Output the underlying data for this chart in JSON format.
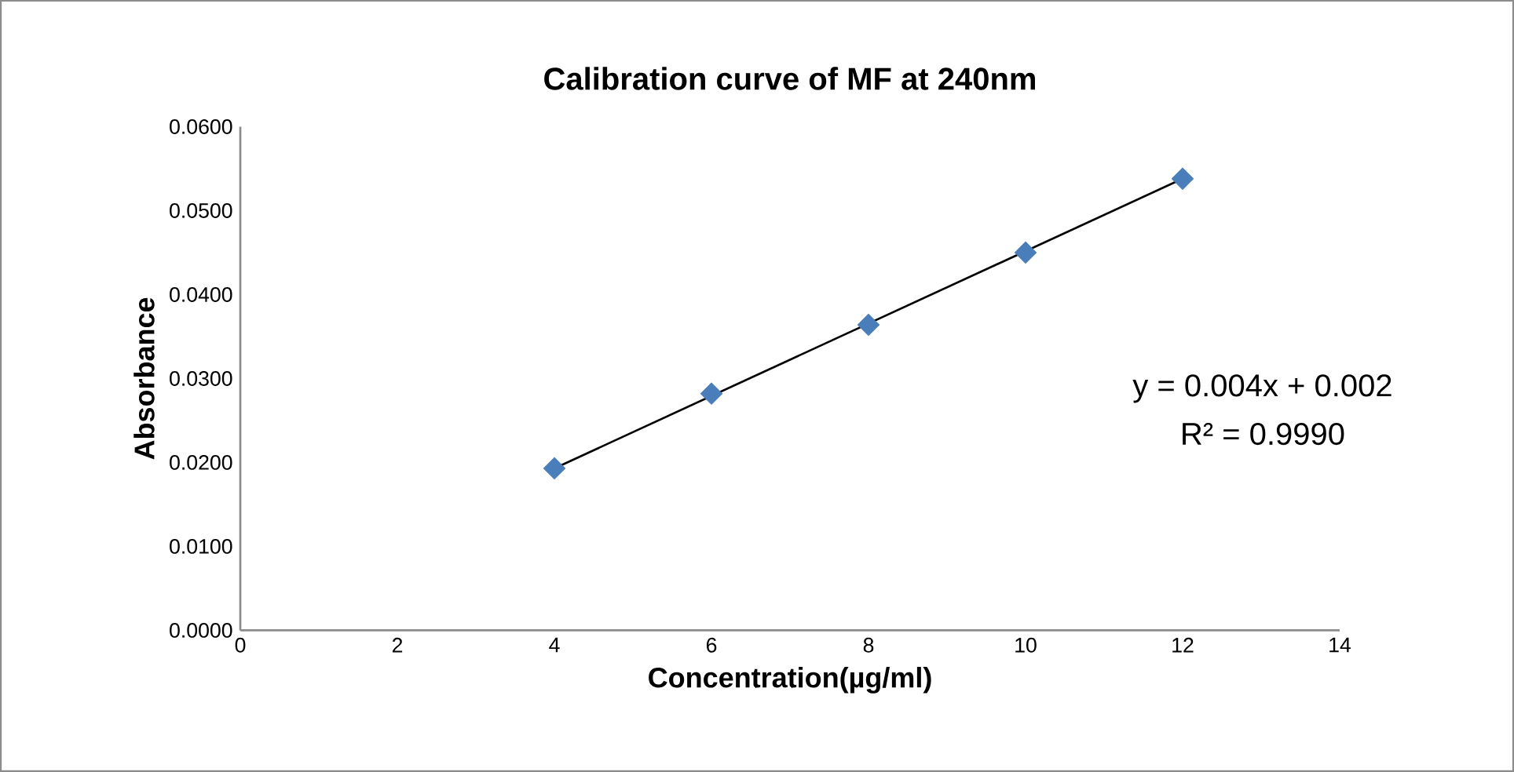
{
  "chart_data": {
    "type": "scatter",
    "title": "Calibration curve of MF at 240nm",
    "xlabel": "Concentration(µg/ml)",
    "ylabel": "Absorbance",
    "x": [
      4,
      6,
      8,
      10,
      12
    ],
    "series": [
      {
        "color": "#4a7ebb",
        "marker": "diamond",
        "values": [
          0.0193,
          0.0282,
          0.0364,
          0.045,
          0.0538
        ]
      },
      {
        "type": "line",
        "color": "#000000",
        "marker": "none",
        "x": [
          4,
          12
        ],
        "values": [
          0.0193,
          0.0538
        ]
      }
    ],
    "xlim": [
      0,
      14
    ],
    "xticks": [
      0,
      2,
      4,
      6,
      8,
      10,
      12,
      14
    ],
    "ylim": [
      0,
      0.06
    ],
    "yticks": [
      {
        "value": 0,
        "label": "0.0000"
      },
      {
        "value": 0.01,
        "label": "0.0100"
      },
      {
        "value": 0.02,
        "label": "0.0200"
      },
      {
        "value": 0.03,
        "label": "0.0300"
      },
      {
        "value": 0.04,
        "label": "0.0400"
      },
      {
        "value": 0.05,
        "label": "0.0500"
      },
      {
        "value": 0.06,
        "label": "0.0600"
      }
    ],
    "annotations": [
      "y = 0.004x + 0.002",
      "R² = 0.9990"
    ],
    "grid": false,
    "legend": false
  }
}
